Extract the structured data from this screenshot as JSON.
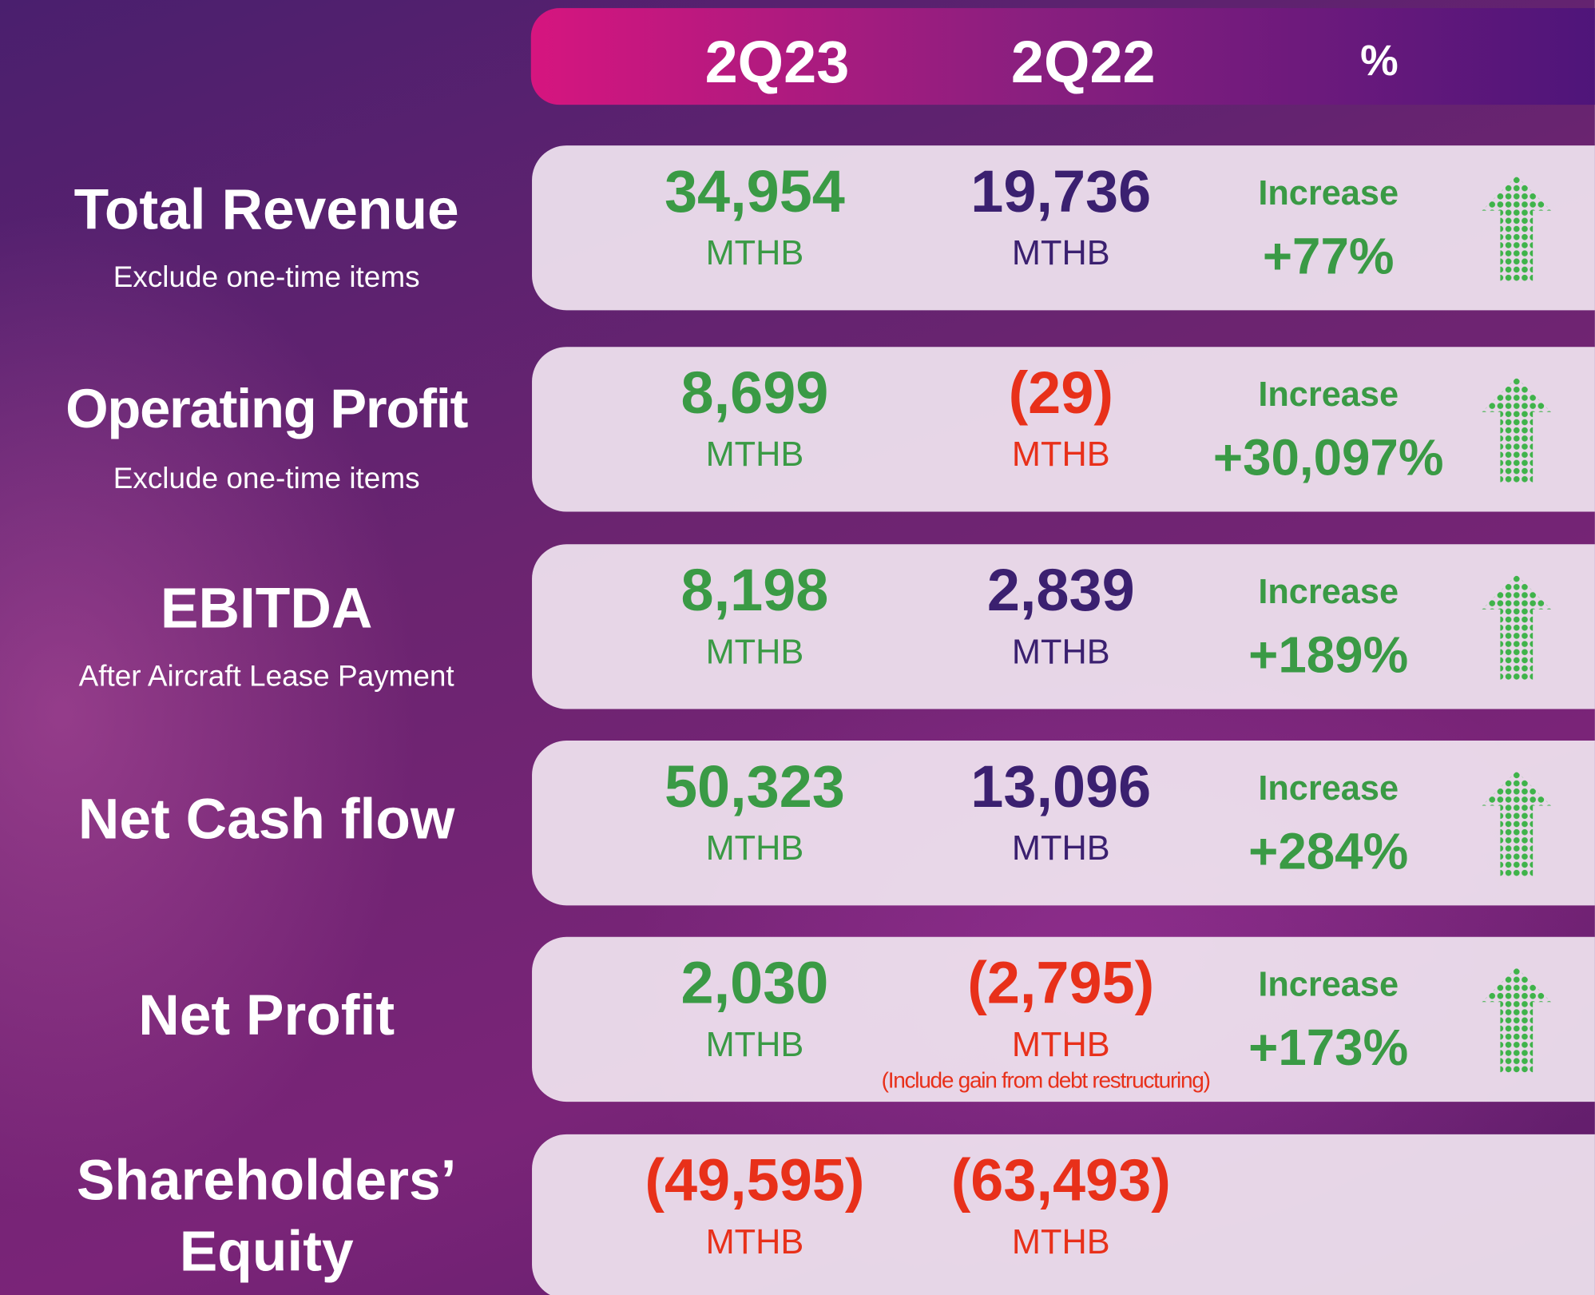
{
  "header": {
    "columns": [
      "2Q23",
      "2Q22",
      "%"
    ]
  },
  "rows": [
    {
      "label": "Total Revenue",
      "sublabel": "Exclude one-time items",
      "current": {
        "value": "34,954",
        "unit": "MTHB"
      },
      "previous": {
        "value": "19,736",
        "unit": "MTHB"
      },
      "change": {
        "label": "Increase",
        "value": "+77%"
      }
    },
    {
      "label": "Operating Profit",
      "sublabel": "Exclude one-time items",
      "current": {
        "value": "8,699",
        "unit": "MTHB"
      },
      "previous": {
        "value": "(29)",
        "unit": "MTHB"
      },
      "change": {
        "label": "Increase",
        "value": "+30,097%"
      }
    },
    {
      "label": "EBITDA",
      "sublabel": "After Aircraft Lease Payment",
      "current": {
        "value": "8,198",
        "unit": "MTHB"
      },
      "previous": {
        "value": "2,839",
        "unit": "MTHB"
      },
      "change": {
        "label": "Increase",
        "value": "+189%"
      }
    },
    {
      "label": "Net Cash flow",
      "current": {
        "value": "50,323",
        "unit": "MTHB"
      },
      "previous": {
        "value": "13,096",
        "unit": "MTHB"
      },
      "change": {
        "label": "Increase",
        "value": "+284%"
      }
    },
    {
      "label": "Net Profit",
      "current": {
        "value": "2,030",
        "unit": "MTHB"
      },
      "previous": {
        "value": "(2,795)",
        "unit": "MTHB",
        "note": "(Include gain from debt restructuring)"
      },
      "change": {
        "label": "Increase",
        "value": "+173%"
      }
    },
    {
      "label": "Shareholders’ Equity",
      "current": {
        "value": "(49,595)",
        "unit": "MTHB"
      },
      "previous": {
        "value": "(63,493)",
        "unit": "MTHB"
      }
    }
  ]
}
